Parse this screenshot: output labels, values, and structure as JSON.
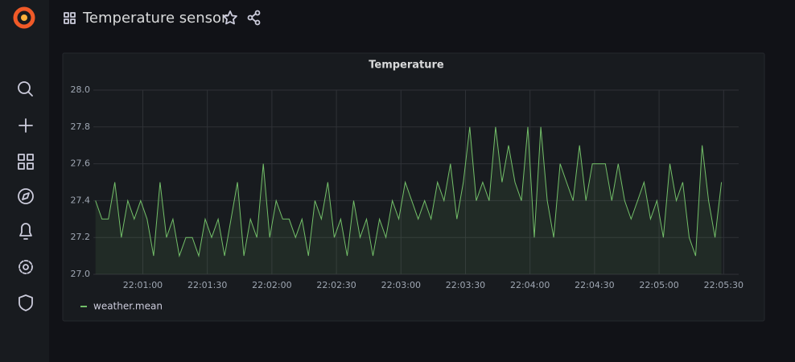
{
  "header": {
    "title": "Temperature sensor"
  },
  "chart_data": {
    "type": "line",
    "title": "Temperature",
    "x": [
      "22:00:38",
      "22:00:41",
      "22:00:44",
      "22:00:47",
      "22:00:50",
      "22:00:53",
      "22:00:56",
      "22:00:59",
      "22:01:02",
      "22:01:05",
      "22:01:08",
      "22:01:11",
      "22:01:14",
      "22:01:17",
      "22:01:20",
      "22:01:23",
      "22:01:26",
      "22:01:29",
      "22:01:32",
      "22:01:35",
      "22:01:38",
      "22:01:41",
      "22:01:44",
      "22:01:47",
      "22:01:50",
      "22:01:53",
      "22:01:56",
      "22:01:59",
      "22:02:02",
      "22:02:05",
      "22:02:08",
      "22:02:11",
      "22:02:14",
      "22:02:17",
      "22:02:20",
      "22:02:23",
      "22:02:26",
      "22:02:29",
      "22:02:32",
      "22:02:35",
      "22:02:38",
      "22:02:41",
      "22:02:44",
      "22:02:47",
      "22:02:50",
      "22:02:53",
      "22:02:56",
      "22:02:59",
      "22:03:02",
      "22:03:05",
      "22:03:08",
      "22:03:11",
      "22:03:14",
      "22:03:17",
      "22:03:20",
      "22:03:23",
      "22:03:26",
      "22:03:29",
      "22:03:32",
      "22:03:35",
      "22:03:38",
      "22:03:41",
      "22:03:44",
      "22:03:47",
      "22:03:50",
      "22:03:53",
      "22:03:56",
      "22:03:59",
      "22:04:02",
      "22:04:05",
      "22:04:08",
      "22:04:11",
      "22:04:14",
      "22:04:17",
      "22:04:20",
      "22:04:23",
      "22:04:26",
      "22:04:29",
      "22:04:32",
      "22:04:35",
      "22:04:38",
      "22:04:41",
      "22:04:44",
      "22:04:47",
      "22:04:50",
      "22:04:53",
      "22:04:56",
      "22:04:59",
      "22:05:02",
      "22:05:05",
      "22:05:08",
      "22:05:11",
      "22:05:14",
      "22:05:17",
      "22:05:20",
      "22:05:23",
      "22:05:26",
      "22:05:29"
    ],
    "series": [
      {
        "name": "weather.mean",
        "color": "#73bf69",
        "values": [
          27.4,
          27.3,
          27.3,
          27.5,
          27.2,
          27.4,
          27.3,
          27.4,
          27.3,
          27.1,
          27.5,
          27.2,
          27.3,
          27.1,
          27.2,
          27.2,
          27.1,
          27.3,
          27.2,
          27.3,
          27.1,
          27.3,
          27.5,
          27.1,
          27.3,
          27.2,
          27.6,
          27.2,
          27.4,
          27.3,
          27.3,
          27.2,
          27.3,
          27.1,
          27.4,
          27.3,
          27.5,
          27.2,
          27.3,
          27.1,
          27.4,
          27.2,
          27.3,
          27.1,
          27.3,
          27.2,
          27.4,
          27.3,
          27.5,
          27.4,
          27.3,
          27.4,
          27.3,
          27.5,
          27.4,
          27.6,
          27.3,
          27.5,
          27.8,
          27.4,
          27.5,
          27.4,
          27.8,
          27.5,
          27.7,
          27.5,
          27.4,
          27.8,
          27.2,
          27.8,
          27.4,
          27.2,
          27.6,
          27.5,
          27.4,
          27.7,
          27.4,
          27.6,
          27.6,
          27.6,
          27.4,
          27.6,
          27.4,
          27.3,
          27.4,
          27.5,
          27.3,
          27.4,
          27.2,
          27.6,
          27.4,
          27.5,
          27.2,
          27.1,
          27.7,
          27.4,
          27.2,
          27.5
        ]
      }
    ],
    "xlim": [
      "22:00:37",
      "22:05:37"
    ],
    "xticks": [
      "22:01:00",
      "22:01:30",
      "22:02:00",
      "22:02:30",
      "22:03:00",
      "22:03:30",
      "22:04:00",
      "22:04:30",
      "22:05:00",
      "22:05:30"
    ],
    "ylim": [
      27,
      28
    ],
    "yticks": [
      {
        "value": 27,
        "label": "27.0"
      },
      27.2,
      27.4,
      27.6,
      27.8,
      {
        "value": 28,
        "label": "28.0"
      }
    ],
    "grid": true
  }
}
